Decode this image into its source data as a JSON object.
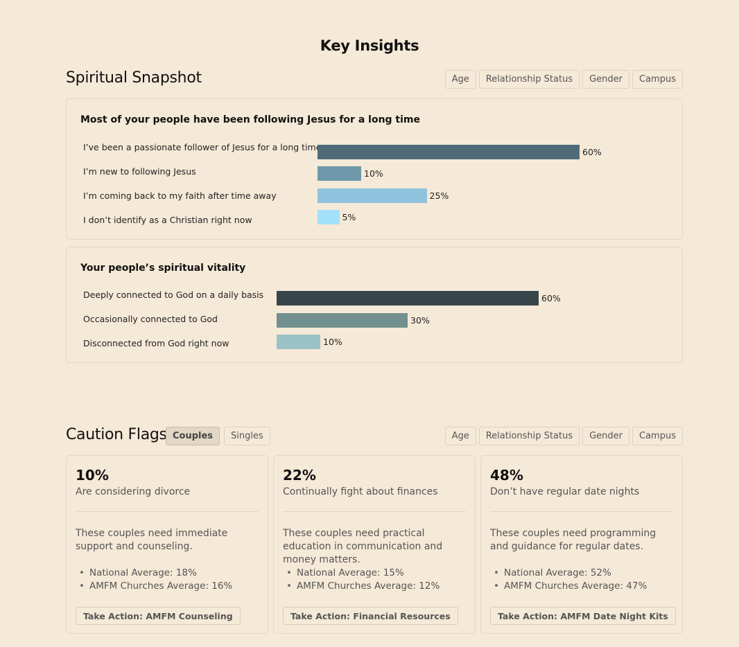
{
  "page_title": "Key Insights",
  "spiritual_snapshot": {
    "title": "Spiritual Snapshot",
    "filters": [
      "Age",
      "Relationship Status",
      "Gender",
      "Campus"
    ]
  },
  "chart_data": [
    {
      "type": "bar",
      "orientation": "horizontal",
      "title": "Most of your people have been following Jesus for a long time",
      "categories": [
        "I’ve been a passionate follower of Jesus for a long time",
        "I’m new to following Jesus",
        "I’m coming back to my faith after time away",
        "I don’t identify as a Christian right now"
      ],
      "values": [
        60,
        10,
        25,
        5
      ],
      "value_labels": [
        "60%",
        "10%",
        "25%",
        "5%"
      ],
      "unit": "%",
      "colors": [
        "#4f6b79",
        "#6f99ab",
        "#8fc3dd",
        "#a3e0f9"
      ]
    },
    {
      "type": "bar",
      "orientation": "horizontal",
      "title": "Your people’s spiritual vitality",
      "categories": [
        "Deeply connected to God on a daily basis",
        "Occasionally connected to God",
        "Disconnected from God right now"
      ],
      "values": [
        60,
        30,
        10
      ],
      "value_labels": [
        "60%",
        "30%",
        "10%"
      ],
      "unit": "%",
      "colors": [
        "#37444a",
        "#72908f",
        "#9bc2c6"
      ]
    }
  ],
  "caution_flags": {
    "title": "Caution Flags",
    "tabs": [
      {
        "label": "Couples",
        "active": true
      },
      {
        "label": "Singles",
        "active": false
      }
    ],
    "filters": [
      "Age",
      "Relationship Status",
      "Gender",
      "Campus"
    ],
    "cards": [
      {
        "stat": "10%",
        "desc": "Are considering divorce",
        "body": "These couples need immediate support and counseling.",
        "bullets": [
          "National Average: 18%",
          "AMFM Churches Average: 16%"
        ],
        "action": "Take Action: AMFM Counseling"
      },
      {
        "stat": "22%",
        "desc": "Continually fight about finances",
        "body": "These couples need practical education in communication and money matters.",
        "bullets": [
          "National Average: 15%",
          "AMFM Churches Average: 12%"
        ],
        "action": "Take Action: Financial Resources"
      },
      {
        "stat": "48%",
        "desc": "Don’t have regular date nights",
        "body": "These couples need programming and guidance for regular dates.",
        "bullets": [
          "National Average: 52%",
          "AMFM Churches Average: 47%"
        ],
        "action": "Take Action: AMFM Date Night Kits"
      }
    ]
  }
}
